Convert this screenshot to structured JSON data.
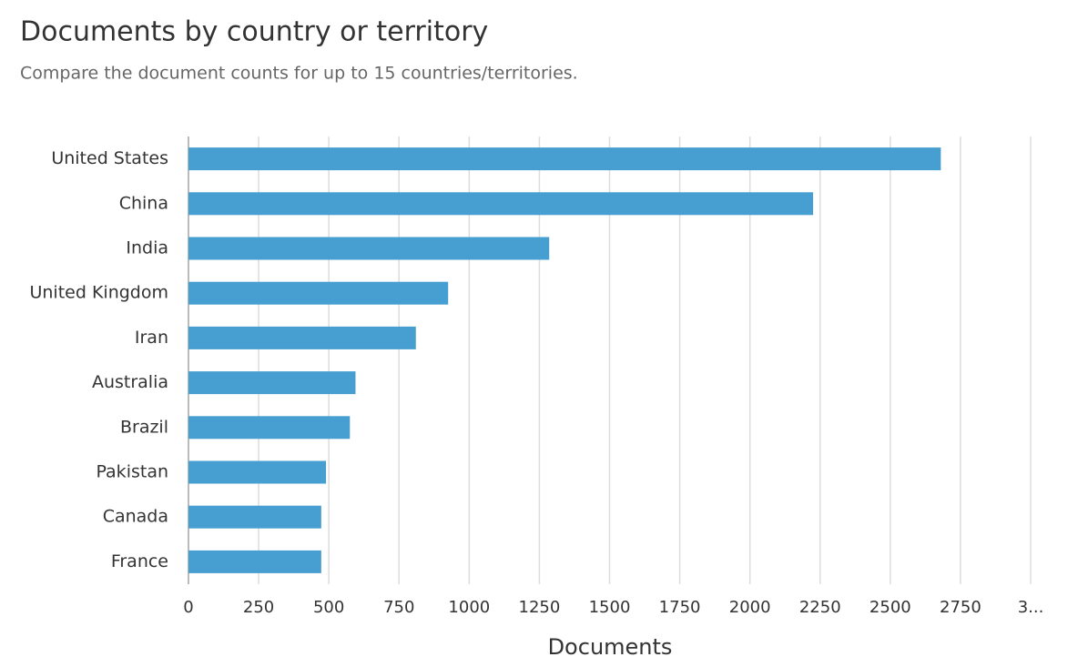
{
  "chart_data": {
    "type": "bar",
    "orientation": "horizontal",
    "title": "Documents by country or territory",
    "subtitle": "Compare the document counts for up to 15 countries/territories.",
    "x_label": "Documents",
    "categories": [
      "United States",
      "China",
      "India",
      "United Kingdom",
      "Iran",
      "Australia",
      "Brazil",
      "Pakistan",
      "Canada",
      "France"
    ],
    "values": [
      2680,
      2225,
      1285,
      925,
      810,
      595,
      575,
      490,
      473,
      473
    ],
    "color": "#479fd1",
    "xlim": [
      0,
      3000
    ],
    "xticks": [
      0,
      250,
      500,
      750,
      1000,
      1250,
      1500,
      1750,
      2000,
      2250,
      2500,
      2750,
      {
        "value": 3000,
        "label": "3..."
      }
    ],
    "grid": true
  }
}
